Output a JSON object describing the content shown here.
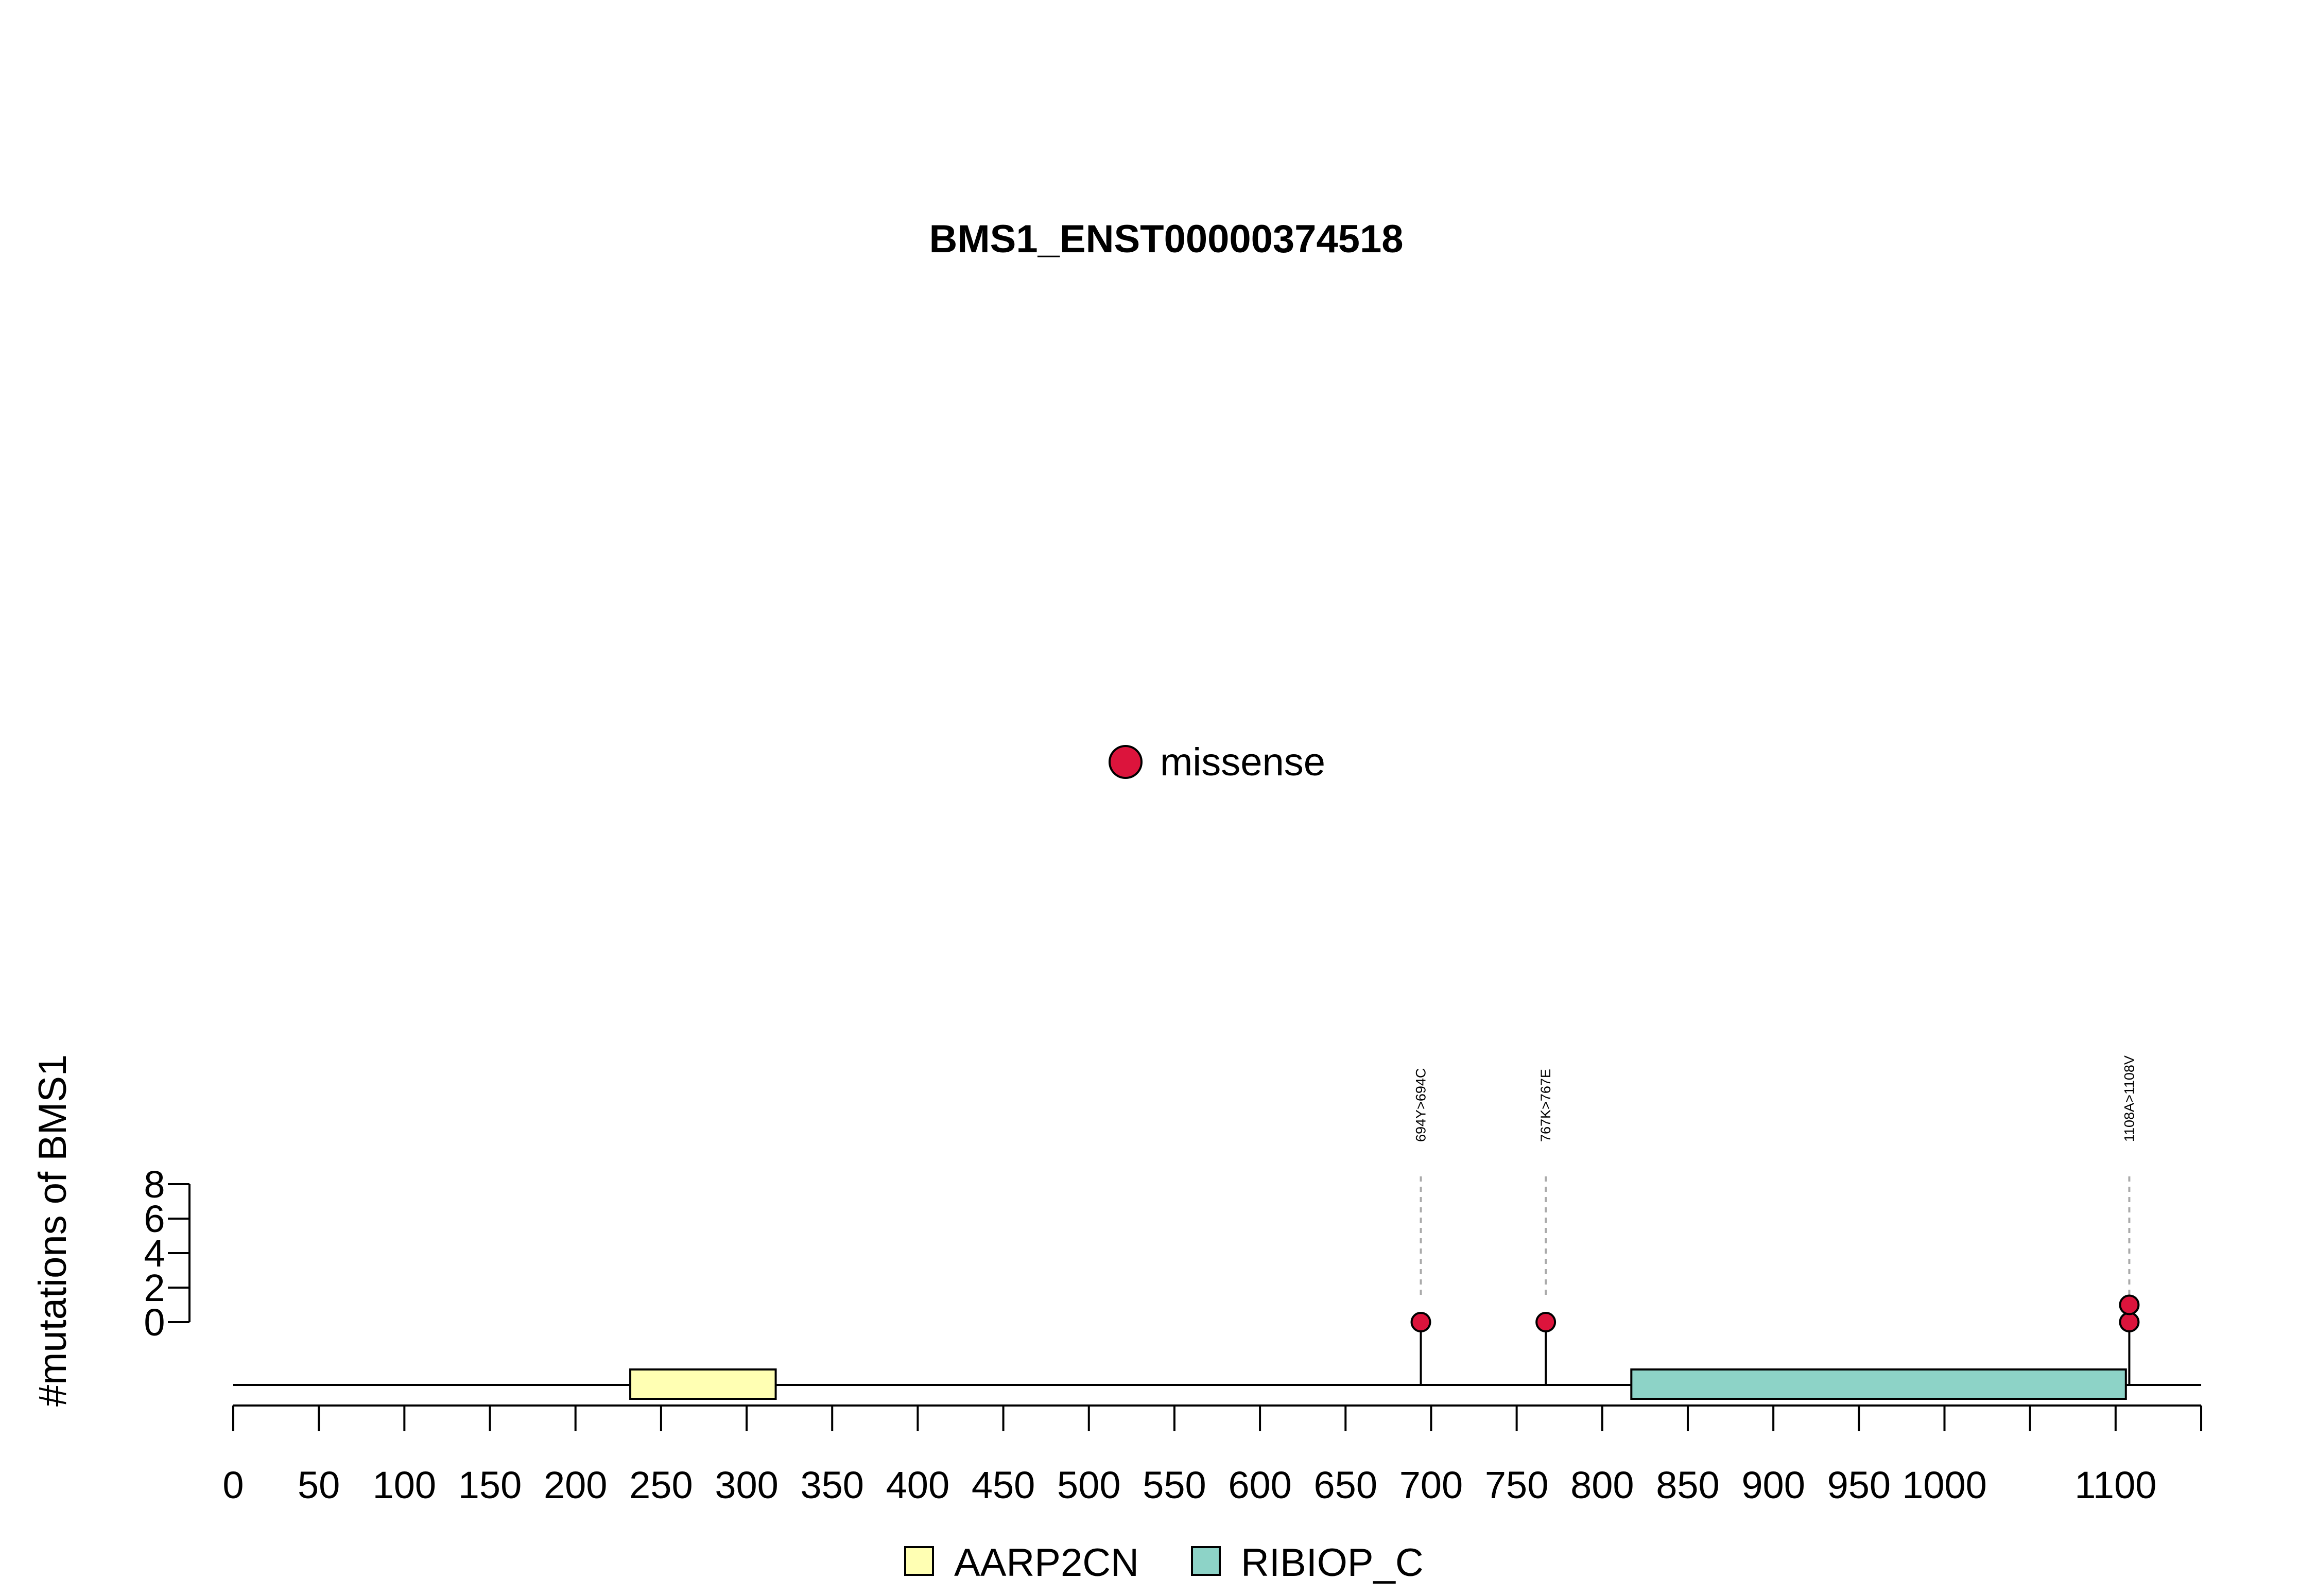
{
  "chart_data": {
    "type": "lollipop",
    "title": "BMS1_ENST00000374518",
    "ylabel": "#mutations of BMS1",
    "xlabel": "",
    "protein_length": 1150,
    "x_ticks": [
      0,
      50,
      100,
      150,
      200,
      250,
      300,
      350,
      400,
      450,
      500,
      550,
      600,
      650,
      700,
      750,
      800,
      850,
      900,
      950,
      1000,
      1050,
      1100,
      1150
    ],
    "x_tick_labels": [
      "0",
      "50",
      "100",
      "150",
      "200",
      "250",
      "300",
      "350",
      "400",
      "450",
      "500",
      "550",
      "600",
      "650",
      "700",
      "750",
      "800",
      "850",
      "900",
      "950",
      "1000",
      "",
      "1100",
      ""
    ],
    "y_ticks": [
      0,
      2,
      4,
      6,
      8
    ],
    "y_tick_labels": [
      "0",
      "2",
      "4",
      "6",
      "8"
    ],
    "ylim": [
      0,
      8
    ],
    "domains": [
      {
        "name": "AARP2CN",
        "start": 232,
        "end": 317,
        "color": "#FFFFB3"
      },
      {
        "name": "RIBIOP_C",
        "start": 817,
        "end": 1106,
        "color": "#8DD3C7"
      }
    ],
    "mutations": [
      {
        "position": 694,
        "count": 1,
        "label": "694Y>694C",
        "type": "missense"
      },
      {
        "position": 767,
        "count": 1,
        "label": "767K>767E",
        "type": "missense"
      },
      {
        "position": 1108,
        "count": 2,
        "label": "1108A>1108V",
        "type": "missense"
      }
    ],
    "mutation_legend": [
      {
        "name": "missense",
        "color": "#DC143C"
      }
    ],
    "domain_legend": [
      {
        "name": "AARP2CN",
        "color": "#FFFFB3"
      },
      {
        "name": "RIBIOP_C",
        "color": "#8DD3C7"
      }
    ]
  }
}
